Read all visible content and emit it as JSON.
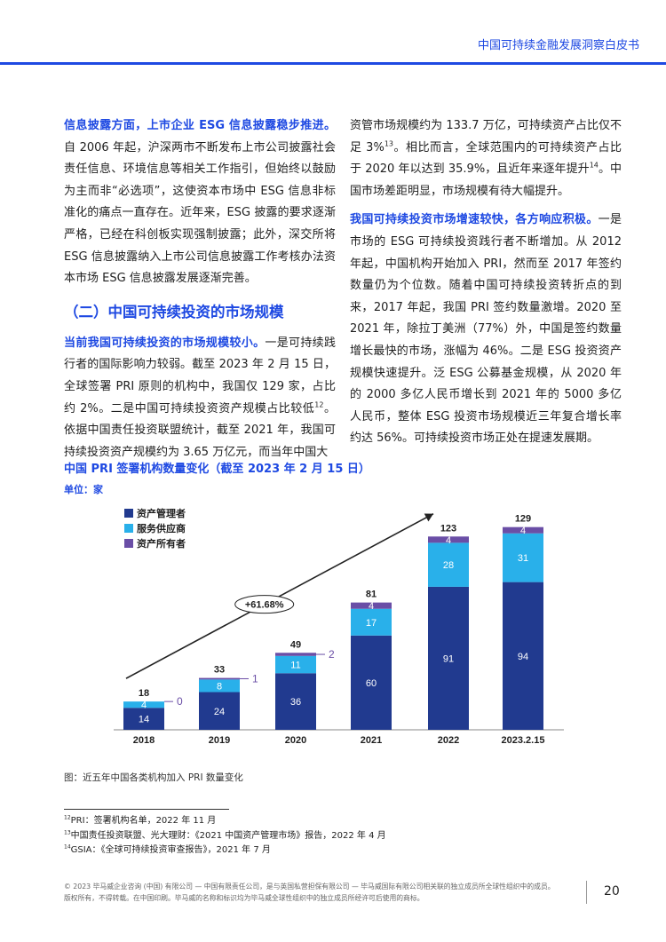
{
  "header": {
    "title": "中国可持续金融发展洞察白皮书"
  },
  "left_col": {
    "p1_lead": "信息披露方面，上市企业 ESG 信息披露稳步推进。",
    "p1_body": "自 2006 年起，沪深两市不断发布上市公司披露社会责任信息、环境信息等相关工作指引，但始终以鼓励为主而非“必选项”，这使资本市场中 ESG 信息非标准化的痛点一直存在。近年来，ESG 披露的要求逐渐严格，已经在科创板实现强制披露；此外，深交所将 ESG 信息披露纳入上市公司信息披露工作考核办法资本市场 ESG 信息披露发展逐渐完善。",
    "section_heading": "（二）中国可持续投资的市场规模",
    "p2_lead": "当前我国可持续投资的市场规模较小。",
    "p2_body_a": "一是可持续践行者的国际影响力较弱。截至 2023 年 2 月 15 日，全球签署 PRI 原则的机构中，我国仅 129 家，占比约 2%。二是中国可持续投资资产规模占比较低",
    "p2_sup": "12",
    "p2_body_b": "。依据中国责任投资联盟统计，截至 2021 年，我国可持续投资资产规模约为 3.65 万亿元，而当年中国大"
  },
  "right_col": {
    "p1_a": "资管市场规模约为 133.7 万亿，可持续资产占比仅不足 3%",
    "p1_sup1": "13",
    "p1_b": "。相比而言，全球范围内的可持续资产占比于 2020 年以达到 35.9%，且近年来逐年提升",
    "p1_sup2": "14",
    "p1_c": "。中国市场差距明显，市场规模有待大幅提升。",
    "p2_lead": "我国可持续投资市场增速较快，各方响应积极。",
    "p2_body": "一是市场的 ESG 可持续投资践行者不断增加。从 2012 年起，中国机构开始加入 PRI，然而至 2017 年签约数量仍为个位数。随着中国可持续投资转折点的到来，2017 年起，我国 PRI 签约数量激增。2020 至 2021 年，除拉丁美洲（77%）外，中国是签约数量增长最快的市场，涨幅为 46%。二是 ESG 投资资产规模快速提升。泛 ESG 公募基金规模，从 2020 年的 2000 多亿人民币增长到 2021 年的 5000 多亿人民币，整体 ESG 投资市场规模近三年复合增长率约达 56%。可持续投资市场正处在提速发展期。"
  },
  "chart_title": "中国 PRI 签署机构数量变化（截至 2023 年 2 月 15 日）",
  "chart_unit": "单位：家",
  "chart_data": {
    "type": "bar",
    "stacked": true,
    "categories": [
      "2018",
      "2019",
      "2020",
      "2021",
      "2022",
      "2023.2.15"
    ],
    "series": [
      {
        "name": "资产管理者",
        "values": [
          14,
          24,
          36,
          60,
          91,
          94
        ],
        "color": "#213a8f"
      },
      {
        "name": "服务供应商",
        "values": [
          4,
          8,
          11,
          17,
          28,
          31
        ],
        "color": "#29b0ea"
      },
      {
        "name": "资产所有者",
        "values": [
          0,
          1,
          2,
          4,
          4,
          4
        ],
        "color": "#6a4ea6"
      }
    ],
    "totals": [
      18,
      33,
      49,
      81,
      123,
      129
    ],
    "growth_annotation": "+61.68%",
    "legend_position": "top-left",
    "grid": false
  },
  "caption": "图：近五年中国各类机构加入 PRI 数量变化",
  "footnotes": [
    {
      "num": "12",
      "text": "PRI：签署机构名单，2022 年 11 月"
    },
    {
      "num": "13",
      "text": "中国责任投资联盟、光大理财：《2021 中国资产管理市场》报告，2022 年 4 月"
    },
    {
      "num": "14",
      "text": "GSIA：《全球可持续投资审查报告》，2021 年 7 月"
    }
  ],
  "footer": {
    "line1": "© 2023 毕马威企业咨询 (中国) 有限公司 — 中国有限责任公司，是与英国私营担保有限公司 — 毕马威国际有限公司相关联的独立成员所全球性组织中的成员。",
    "line2": "版权所有，不得转载。在中国印刷。毕马威的名称和标识均为毕马威全球性组织中的独立成员所经许可后使用的商标。"
  },
  "page_number": "20"
}
